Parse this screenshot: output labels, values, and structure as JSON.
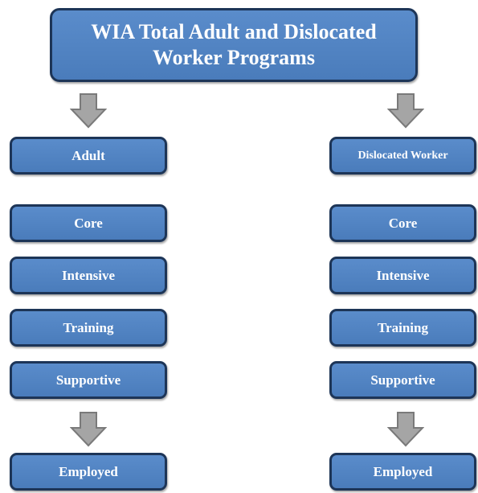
{
  "title": "WIA Total Adult and Dislocated Worker Programs",
  "columns": [
    {
      "header": "Adult",
      "steps": [
        "Core",
        "Intensive",
        "Training",
        "Supportive"
      ],
      "outcome": "Employed"
    },
    {
      "header": "Dislocated Worker",
      "steps": [
        "Core",
        "Intensive",
        "Training",
        "Supportive"
      ],
      "outcome": "Employed"
    }
  ]
}
